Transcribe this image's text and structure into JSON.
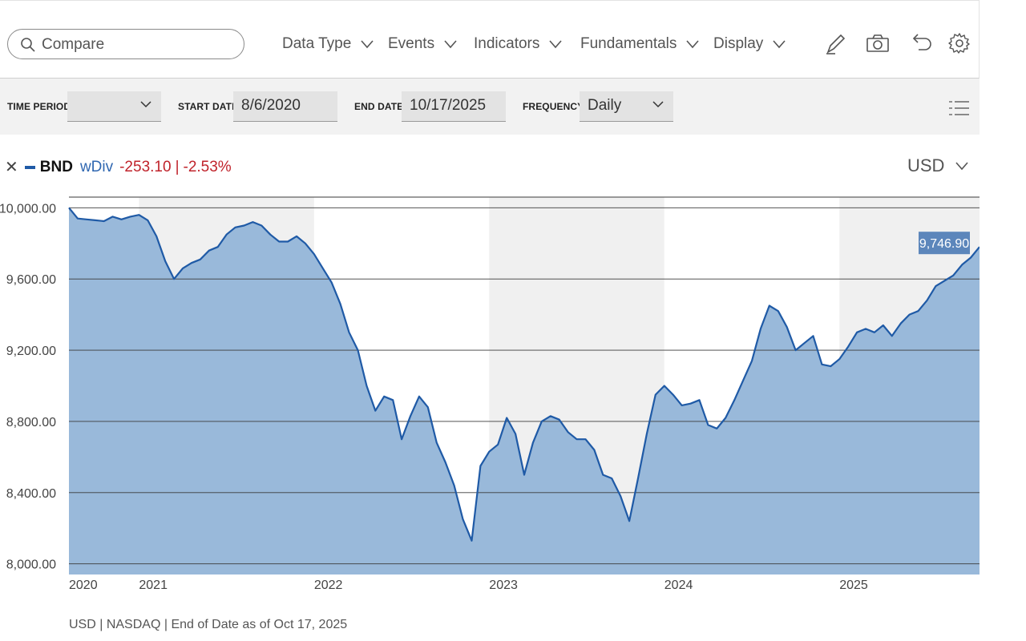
{
  "toolbar": {
    "search_placeholder": "Compare",
    "menus": [
      "Data Type",
      "Events",
      "Indicators",
      "Fundamentals",
      "Display"
    ],
    "tools": [
      "pencil-icon",
      "camera-icon",
      "undo-icon",
      "gear-icon"
    ]
  },
  "filters": {
    "time_period_label": "TIME PERIOD",
    "time_period_value": "",
    "start_date_label": "START DATE",
    "start_date_value": "8/6/2020",
    "end_date_label": "END DATE",
    "end_date_value": "10/17/2025",
    "frequency_label": "FREQUENCY",
    "frequency_value": "Daily"
  },
  "legend": {
    "symbol": "BND",
    "mode": "wDiv",
    "change": "-253.10",
    "separator": "|",
    "change_pct": "-2.53%",
    "currency": "USD"
  },
  "colors": {
    "line": "#1f5aa6",
    "area": "#94b5d8",
    "band": "#f0f0f0",
    "negative": "#c0232b",
    "label_bg": "#5c86bb"
  },
  "chart_data": {
    "type": "area",
    "ylim": [
      7940,
      10060
    ],
    "yticks": [
      "10,000.00",
      "9,600.00",
      "9,200.00",
      "8,800.00",
      "8,400.00",
      "8,000.00"
    ],
    "ytick_values": [
      10000,
      9600,
      9200,
      8800,
      8400,
      8000
    ],
    "x_labels": [
      "2020",
      "2021",
      "2022",
      "2023",
      "2024",
      "2025"
    ],
    "last_value_label": "9,746.90",
    "series": [
      {
        "x": [
          2020.6,
          2020.65,
          2020.7,
          2020.75,
          2020.8,
          2020.85,
          2020.9,
          2020.95,
          2021.0,
          2021.05,
          2021.1,
          2021.15,
          2021.2,
          2021.25,
          2021.3,
          2021.35,
          2021.4,
          2021.45,
          2021.5,
          2021.55,
          2021.6,
          2021.65,
          2021.7,
          2021.75,
          2021.8,
          2021.85,
          2021.9,
          2021.95,
          2022.0,
          2022.05,
          2022.1,
          2022.15,
          2022.2,
          2022.25,
          2022.3,
          2022.35,
          2022.4,
          2022.45,
          2022.5,
          2022.55,
          2022.6,
          2022.65,
          2022.7,
          2022.75,
          2022.8,
          2022.85,
          2022.9,
          2022.95,
          2023.0,
          2023.05,
          2023.1,
          2023.15,
          2023.2,
          2023.25,
          2023.3,
          2023.35,
          2023.4,
          2023.45,
          2023.5,
          2023.55,
          2023.6,
          2023.65,
          2023.7,
          2023.75,
          2023.8,
          2023.85,
          2023.9,
          2023.95,
          2024.0,
          2024.05,
          2024.1,
          2024.15,
          2024.2,
          2024.25,
          2024.3,
          2024.35,
          2024.4,
          2024.45,
          2024.5,
          2024.55,
          2024.6,
          2024.65,
          2024.7,
          2024.75,
          2024.8,
          2024.85,
          2024.9,
          2024.95,
          2025.0,
          2025.05,
          2025.1,
          2025.15,
          2025.2,
          2025.25,
          2025.3,
          2025.35,
          2025.4,
          2025.45,
          2025.5,
          2025.55,
          2025.6,
          2025.65,
          2025.7,
          2025.75,
          2025.8
        ],
        "y": [
          10000,
          9940,
          9935,
          9930,
          9925,
          9950,
          9935,
          9950,
          9960,
          9930,
          9840,
          9700,
          9600,
          9660,
          9690,
          9710,
          9760,
          9780,
          9850,
          9890,
          9900,
          9920,
          9900,
          9850,
          9810,
          9810,
          9840,
          9800,
          9740,
          9660,
          9580,
          9460,
          9300,
          9200,
          9000,
          8860,
          8940,
          8920,
          8700,
          8830,
          8940,
          8880,
          8680,
          8570,
          8440,
          8250,
          8130,
          8550,
          8630,
          8670,
          8820,
          8730,
          8500,
          8680,
          8800,
          8830,
          8810,
          8740,
          8700,
          8700,
          8640,
          8500,
          8480,
          8380,
          8240,
          8480,
          8730,
          8950,
          9000,
          8950,
          8890,
          8900,
          8920,
          8780,
          8760,
          8820,
          8920,
          9030,
          9140,
          9320,
          9450,
          9420,
          9330,
          9200,
          9240,
          9280,
          9120,
          9110,
          9150,
          9220,
          9300,
          9320,
          9300,
          9340,
          9280,
          9350,
          9400,
          9420,
          9480,
          9560,
          9590,
          9620,
          9680,
          9720,
          9780
        ]
      }
    ]
  },
  "footer": "USD | NASDAQ | End of Date as of Oct 17, 2025"
}
